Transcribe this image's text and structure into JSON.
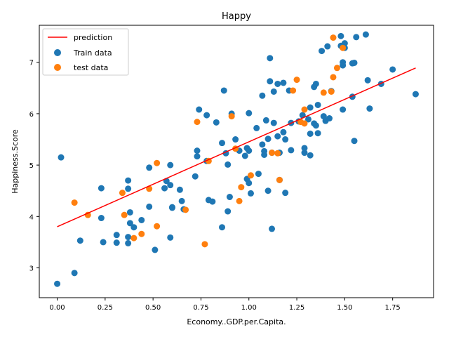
{
  "chart_data": {
    "type": "scatter",
    "title": "Happy",
    "xlabel": "Economy..GDP.per.Capita.",
    "ylabel": "Happiness.Score",
    "xlim": [
      -0.0935,
      1.9635
    ],
    "ylim": [
      2.42,
      7.72
    ],
    "xticks": [
      0.0,
      0.25,
      0.5,
      0.75,
      1.0,
      1.25,
      1.5,
      1.75
    ],
    "xtick_labels": [
      "0.00",
      "0.25",
      "0.50",
      "0.75",
      "1.00",
      "1.25",
      "1.50",
      "1.75"
    ],
    "yticks": [
      3,
      4,
      5,
      6,
      7
    ],
    "ytick_labels": [
      "3",
      "4",
      "5",
      "6",
      "7"
    ],
    "grid": false,
    "legend_position": "top-left",
    "colors": {
      "train": "#1f77b4",
      "test": "#ff7f0e",
      "prediction": "#ff0000"
    },
    "prediction": {
      "name": "prediction",
      "x": [
        0.0,
        1.87
      ],
      "y": [
        3.8,
        6.89
      ]
    },
    "train": {
      "name": "Train data",
      "points": [
        [
          0.0,
          2.69
        ],
        [
          0.02,
          5.15
        ],
        [
          0.09,
          2.9
        ],
        [
          0.12,
          3.53
        ],
        [
          0.23,
          4.55
        ],
        [
          0.23,
          3.97
        ],
        [
          0.24,
          3.5
        ],
        [
          0.31,
          3.49
        ],
        [
          0.31,
          3.64
        ],
        [
          0.37,
          4.7
        ],
        [
          0.37,
          4.54
        ],
        [
          0.37,
          3.6
        ],
        [
          0.37,
          3.48
        ],
        [
          0.38,
          4.08
        ],
        [
          0.38,
          3.87
        ],
        [
          0.4,
          3.79
        ],
        [
          0.44,
          3.93
        ],
        [
          0.48,
          4.95
        ],
        [
          0.48,
          4.19
        ],
        [
          0.51,
          3.35
        ],
        [
          0.56,
          4.55
        ],
        [
          0.57,
          4.69
        ],
        [
          0.59,
          5.0
        ],
        [
          0.59,
          4.61
        ],
        [
          0.59,
          3.59
        ],
        [
          0.6,
          4.18
        ],
        [
          0.6,
          4.17
        ],
        [
          0.64,
          4.52
        ],
        [
          0.65,
          4.3
        ],
        [
          0.66,
          4.14
        ],
        [
          0.72,
          4.78
        ],
        [
          0.73,
          5.28
        ],
        [
          0.73,
          5.17
        ],
        [
          0.74,
          6.08
        ],
        [
          0.78,
          5.97
        ],
        [
          0.78,
          5.08
        ],
        [
          0.79,
          4.32
        ],
        [
          0.81,
          4.29
        ],
        [
          0.83,
          5.83
        ],
        [
          0.86,
          5.43
        ],
        [
          0.86,
          3.79
        ],
        [
          0.87,
          6.45
        ],
        [
          0.88,
          5.23
        ],
        [
          0.89,
          5.01
        ],
        [
          0.89,
          4.1
        ],
        [
          0.9,
          4.38
        ],
        [
          0.91,
          6.0
        ],
        [
          0.93,
          5.5
        ],
        [
          0.95,
          5.28
        ],
        [
          0.98,
          5.18
        ],
        [
          0.99,
          5.33
        ],
        [
          0.99,
          4.73
        ],
        [
          1.0,
          6.01
        ],
        [
          1.0,
          5.28
        ],
        [
          1.0,
          4.65
        ],
        [
          1.01,
          4.45
        ],
        [
          1.04,
          5.72
        ],
        [
          1.05,
          4.83
        ],
        [
          1.07,
          6.35
        ],
        [
          1.07,
          5.4
        ],
        [
          1.08,
          5.27
        ],
        [
          1.08,
          5.2
        ],
        [
          1.09,
          5.87
        ],
        [
          1.1,
          5.51
        ],
        [
          1.1,
          4.5
        ],
        [
          1.11,
          7.08
        ],
        [
          1.11,
          6.63
        ],
        [
          1.12,
          5.24
        ],
        [
          1.12,
          3.76
        ],
        [
          1.13,
          6.43
        ],
        [
          1.13,
          5.82
        ],
        [
          1.15,
          6.58
        ],
        [
          1.15,
          5.56
        ],
        [
          1.16,
          5.24
        ],
        [
          1.16,
          4.71
        ],
        [
          1.18,
          6.6
        ],
        [
          1.18,
          5.64
        ],
        [
          1.19,
          5.5
        ],
        [
          1.19,
          4.46
        ],
        [
          1.21,
          6.45
        ],
        [
          1.22,
          5.82
        ],
        [
          1.22,
          5.29
        ],
        [
          1.26,
          5.85
        ],
        [
          1.28,
          5.97
        ],
        [
          1.29,
          5.33
        ],
        [
          1.29,
          5.24
        ],
        [
          1.31,
          5.89
        ],
        [
          1.32,
          6.12
        ],
        [
          1.32,
          5.61
        ],
        [
          1.32,
          5.19
        ],
        [
          1.34,
          6.52
        ],
        [
          1.34,
          5.81
        ],
        [
          1.35,
          6.58
        ],
        [
          1.35,
          5.77
        ],
        [
          1.36,
          6.17
        ],
        [
          1.36,
          5.62
        ],
        [
          1.38,
          7.22
        ],
        [
          1.39,
          5.95
        ],
        [
          1.4,
          5.86
        ],
        [
          1.41,
          7.31
        ],
        [
          1.42,
          5.91
        ],
        [
          1.43,
          6.44
        ],
        [
          1.48,
          7.51
        ],
        [
          1.48,
          7.32
        ],
        [
          1.49,
          7.0
        ],
        [
          1.49,
          6.94
        ],
        [
          1.49,
          6.08
        ],
        [
          1.5,
          7.28
        ],
        [
          1.5,
          7.37
        ],
        [
          1.54,
          6.33
        ],
        [
          1.54,
          6.98
        ],
        [
          1.55,
          6.99
        ],
        [
          1.55,
          5.47
        ],
        [
          1.56,
          7.49
        ],
        [
          1.61,
          7.54
        ],
        [
          1.62,
          6.65
        ],
        [
          1.63,
          6.1
        ],
        [
          1.69,
          6.58
        ],
        [
          1.75,
          6.86
        ],
        [
          1.87,
          6.38
        ]
      ]
    },
    "test": {
      "name": "test data",
      "points": [
        [
          0.09,
          4.27
        ],
        [
          0.16,
          4.03
        ],
        [
          0.34,
          4.46
        ],
        [
          0.35,
          4.03
        ],
        [
          0.4,
          3.58
        ],
        [
          0.44,
          3.66
        ],
        [
          0.48,
          4.54
        ],
        [
          0.52,
          5.04
        ],
        [
          0.52,
          3.81
        ],
        [
          0.67,
          4.13
        ],
        [
          0.73,
          5.84
        ],
        [
          0.77,
          3.46
        ],
        [
          0.79,
          5.08
        ],
        [
          0.91,
          5.95
        ],
        [
          0.93,
          5.32
        ],
        [
          0.95,
          4.3
        ],
        [
          0.96,
          4.57
        ],
        [
          1.01,
          4.8
        ],
        [
          1.12,
          5.24
        ],
        [
          1.15,
          5.23
        ],
        [
          1.16,
          4.71
        ],
        [
          1.23,
          6.45
        ],
        [
          1.25,
          6.66
        ],
        [
          1.27,
          5.84
        ],
        [
          1.29,
          5.81
        ],
        [
          1.29,
          6.08
        ],
        [
          1.39,
          6.41
        ],
        [
          1.43,
          6.43
        ],
        [
          1.44,
          6.71
        ],
        [
          1.44,
          7.48
        ],
        [
          1.46,
          6.89
        ],
        [
          1.49,
          7.28
        ]
      ]
    }
  }
}
